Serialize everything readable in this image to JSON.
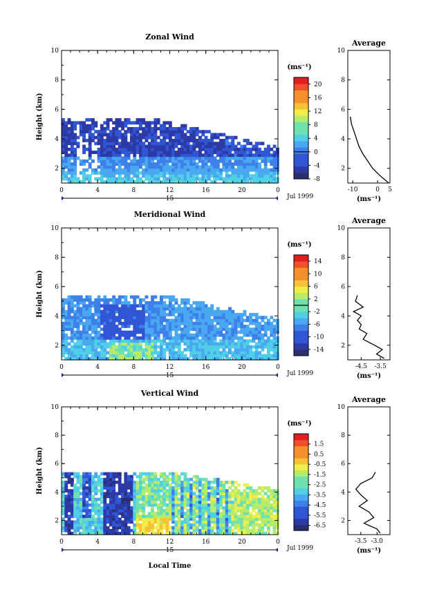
{
  "chart_data": [
    {
      "type": "heatmap",
      "title": "Zonal Wind",
      "ylabel": "Height (km)",
      "ylim": [
        1,
        10
      ],
      "yticks": [
        "2",
        "4",
        "6",
        "8",
        "10"
      ],
      "xlim": [
        0,
        24
      ],
      "xticks": [
        "0",
        "4",
        "8",
        "12",
        "16",
        "20",
        "0"
      ],
      "day_label": "15",
      "date_label": "Jul 1999",
      "colorbar": {
        "unit": "(ms⁻¹)",
        "min": -8,
        "max": 22,
        "ticks": [
          "-8",
          "-4",
          "0",
          "4",
          "8",
          "12",
          "16",
          "20"
        ],
        "zero_line": 0
      },
      "profile": {
        "title": "Average",
        "xlim": [
          -12,
          5
        ],
        "xticks": [
          "-10",
          "0",
          "5"
        ],
        "xlabel": "(ms⁻¹)",
        "height": [
          5.5,
          5.0,
          4.5,
          4.0,
          3.5,
          3.0,
          2.5,
          2.0,
          1.5,
          1.0
        ],
        "value": [
          -11.0,
          -10.5,
          -9.5,
          -8.5,
          -7.5,
          -6.0,
          -4.0,
          -2.0,
          1.0,
          4.5
        ]
      }
    },
    {
      "type": "heatmap",
      "title": "Meridional Wind",
      "ylabel": "Height (km)",
      "ylim": [
        1,
        10
      ],
      "yticks": [
        "2",
        "4",
        "6",
        "8",
        "10"
      ],
      "xlim": [
        0,
        24
      ],
      "xticks": [
        "0",
        "4",
        "8",
        "12",
        "16",
        "20",
        "0"
      ],
      "day_label": "15",
      "date_label": "Jul 1999",
      "colorbar": {
        "unit": "(ms⁻¹)",
        "min": -16,
        "max": 16,
        "ticks": [
          "-14",
          "-10",
          "-6",
          "-2",
          "2",
          "6",
          "10",
          "14"
        ],
        "zero_line": 0
      },
      "profile": {
        "title": "Average",
        "xlim": [
          -5.2,
          -3.0
        ],
        "xticks": [
          "-4.5",
          "-3.5"
        ],
        "xlabel": "(ms⁻¹)",
        "height": [
          5.4,
          5.0,
          4.6,
          4.3,
          4.0,
          3.7,
          3.4,
          3.1,
          2.8,
          2.4,
          2.0,
          1.7,
          1.4,
          1.1
        ],
        "value": [
          -4.7,
          -4.8,
          -4.4,
          -4.9,
          -4.5,
          -4.7,
          -4.5,
          -4.6,
          -4.2,
          -4.4,
          -3.8,
          -3.4,
          -3.7,
          -3.3
        ]
      }
    },
    {
      "type": "heatmap",
      "title": "Vertical Wind",
      "ylabel": "Height (km)",
      "xlabel": "Local Time",
      "ylim": [
        1,
        10
      ],
      "yticks": [
        "2",
        "4",
        "6",
        "8",
        "10"
      ],
      "xlim": [
        0,
        24
      ],
      "xticks": [
        "0",
        "4",
        "8",
        "12",
        "16",
        "20",
        "0"
      ],
      "day_label": "15",
      "date_label": "Jul 1999",
      "colorbar": {
        "unit": "(ms⁻¹)",
        "min": -7,
        "max": 2.5,
        "ticks": [
          "-6.5",
          "-5.5",
          "-4.5",
          "-3.5",
          "-2.5",
          "-1.5",
          "-0.5",
          "0.5",
          "1.5"
        ]
      },
      "profile": {
        "title": "Average",
        "xlim": [
          -3.9,
          -2.6
        ],
        "xticks": [
          "-3.5",
          "-3.0"
        ],
        "xlabel": "(ms⁻¹)",
        "height": [
          5.4,
          5.0,
          4.6,
          4.2,
          3.8,
          3.4,
          3.0,
          2.6,
          2.2,
          1.8,
          1.4,
          1.1
        ],
        "value": [
          -3.05,
          -3.15,
          -3.5,
          -3.65,
          -3.5,
          -3.3,
          -3.55,
          -3.25,
          -3.1,
          -3.4,
          -3.0,
          -2.9
        ]
      }
    }
  ],
  "colors": {
    "scale": [
      "#2b2f6e",
      "#2d3aa6",
      "#3056d6",
      "#3d80ea",
      "#4aa8f0",
      "#4fd0e6",
      "#6fe0b0",
      "#b6ec6a",
      "#f0ee4a",
      "#f6c236",
      "#f6902c",
      "#f0502a",
      "#e02020"
    ]
  }
}
